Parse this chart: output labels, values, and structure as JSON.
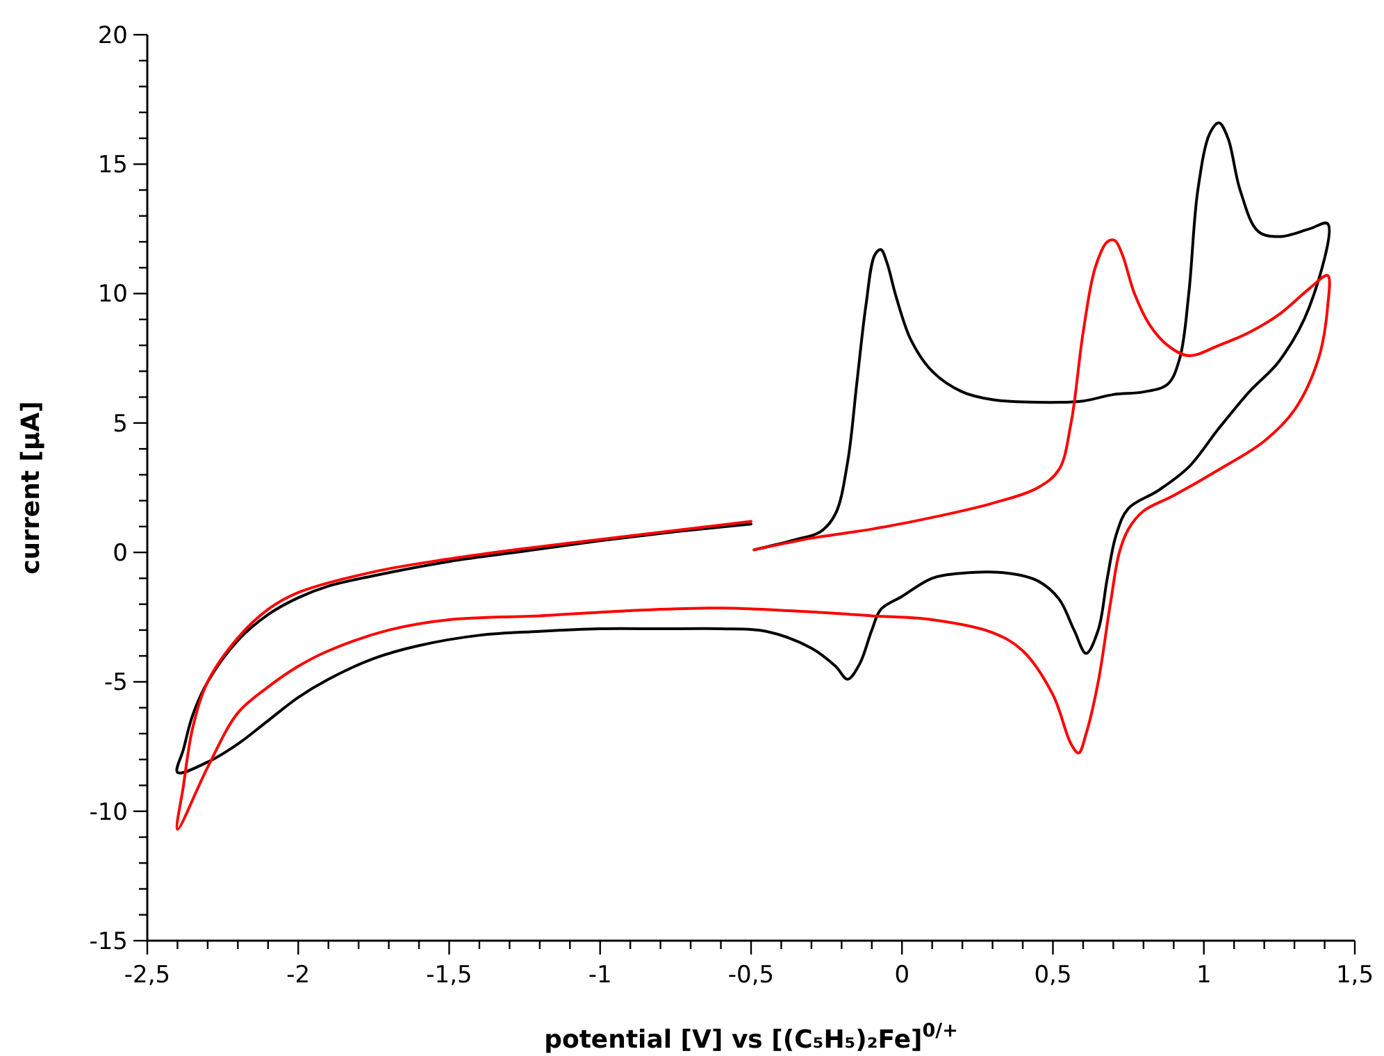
{
  "chart_data": {
    "type": "line",
    "xlabel": "potential [V] vs [(C₅H₅)₂Fe]$^{0/+}$",
    "ylabel": "current [µA]",
    "xlim": [
      -2.5,
      1.5
    ],
    "ylim": [
      -15,
      20
    ],
    "grid": false,
    "marker": "none",
    "line_style": "solid",
    "xticks": [
      {
        "value": -2.5,
        "label": "-2,5"
      },
      {
        "value": -2,
        "label": "-2"
      },
      {
        "value": -1.5,
        "label": "-1,5"
      },
      {
        "value": -1,
        "label": "-1"
      },
      {
        "value": -0.5,
        "label": "-0,5"
      },
      {
        "value": 0,
        "label": "0"
      },
      {
        "value": 0.5,
        "label": "0,5"
      },
      {
        "value": 1,
        "label": "1"
      },
      {
        "value": 1.5,
        "label": "1,5"
      },
      {
        "value": -2.4,
        "label": null
      },
      {
        "value": -2.3,
        "label": null
      },
      {
        "value": -2.2,
        "label": null
      },
      {
        "value": -2.1,
        "label": null
      },
      {
        "value": -1.9,
        "label": null
      },
      {
        "value": -1.8,
        "label": null
      },
      {
        "value": -1.7,
        "label": null
      },
      {
        "value": -1.6,
        "label": null
      },
      {
        "value": -1.4,
        "label": null
      },
      {
        "value": -1.3,
        "label": null
      },
      {
        "value": -1.2,
        "label": null
      },
      {
        "value": -1.1,
        "label": null
      },
      {
        "value": -0.9,
        "label": null
      },
      {
        "value": -0.8,
        "label": null
      },
      {
        "value": -0.7,
        "label": null
      },
      {
        "value": -0.6,
        "label": null
      },
      {
        "value": -0.4,
        "label": null
      },
      {
        "value": -0.3,
        "label": null
      },
      {
        "value": -0.2,
        "label": null
      },
      {
        "value": -0.1,
        "label": null
      },
      {
        "value": 0.1,
        "label": null
      },
      {
        "value": 0.2,
        "label": null
      },
      {
        "value": 0.3,
        "label": null
      },
      {
        "value": 0.4,
        "label": null
      },
      {
        "value": 0.6,
        "label": null
      },
      {
        "value": 0.7,
        "label": null
      },
      {
        "value": 0.8,
        "label": null
      },
      {
        "value": 0.9,
        "label": null
      },
      {
        "value": 1.1,
        "label": null
      },
      {
        "value": 1.2,
        "label": null
      },
      {
        "value": 1.3,
        "label": null
      },
      {
        "value": 1.4,
        "label": null
      }
    ],
    "yticks": [
      -15,
      -10,
      -5,
      0,
      5,
      10,
      15,
      20,
      {
        "value": -14,
        "label": null
      },
      {
        "value": -13,
        "label": null
      },
      {
        "value": -12,
        "label": null
      },
      {
        "value": -11,
        "label": null
      },
      {
        "value": -9,
        "label": null
      },
      {
        "value": -8,
        "label": null
      },
      {
        "value": -7,
        "label": null
      },
      {
        "value": -6,
        "label": null
      },
      {
        "value": -4,
        "label": null
      },
      {
        "value": -3,
        "label": null
      },
      {
        "value": -2,
        "label": null
      },
      {
        "value": -1,
        "label": null
      },
      {
        "value": 1,
        "label": null
      },
      {
        "value": 2,
        "label": null
      },
      {
        "value": 3,
        "label": null
      },
      {
        "value": 4,
        "label": null
      },
      {
        "value": 6,
        "label": null
      },
      {
        "value": 7,
        "label": null
      },
      {
        "value": 8,
        "label": null
      },
      {
        "value": 9,
        "label": null
      },
      {
        "value": 11,
        "label": null
      },
      {
        "value": 12,
        "label": null
      },
      {
        "value": 13,
        "label": null
      },
      {
        "value": 14,
        "label": null
      },
      {
        "value": 16,
        "label": null
      },
      {
        "value": 17,
        "label": null
      },
      {
        "value": 18,
        "label": null
      },
      {
        "value": 19,
        "label": null
      }
    ],
    "series": [
      {
        "color": "#000000",
        "x": [
          -0.5,
          -0.75,
          -1.0,
          -1.25,
          -1.5,
          -1.75,
          -1.9,
          -2.0,
          -2.1,
          -2.2,
          -2.3,
          -2.35,
          -2.38,
          -2.4,
          -2.3,
          -2.2,
          -2.1,
          -2.0,
          -1.9,
          -1.75,
          -1.6,
          -1.4,
          -1.2,
          -1.0,
          -0.8,
          -0.6,
          -0.45,
          -0.3,
          -0.22,
          -0.18,
          -0.14,
          -0.1,
          -0.07,
          0,
          0.1,
          0.2,
          0.35,
          0.45,
          0.52,
          0.57,
          0.61,
          0.65,
          0.68,
          0.71,
          0.75,
          0.85,
          0.95,
          1.05,
          1.15,
          1.25,
          1.35,
          1.41,
          1.35,
          1.25,
          1.18,
          1.12,
          1.08,
          1.05,
          1.02,
          0.98,
          0.95,
          0.92,
          0.88,
          0.8,
          0.7,
          0.6,
          0.45,
          0.3,
          0.2,
          0.1,
          0.03,
          -0.02,
          -0.05,
          -0.07,
          -0.09,
          -0.12,
          -0.15,
          -0.18,
          -0.22,
          -0.27,
          -0.35,
          -0.49
        ],
        "values": [
          1.1,
          0.8,
          0.45,
          0.05,
          -0.35,
          -0.9,
          -1.3,
          -1.75,
          -2.4,
          -3.4,
          -5.0,
          -6.3,
          -7.6,
          -8.5,
          -8.1,
          -7.4,
          -6.5,
          -5.6,
          -4.9,
          -4.1,
          -3.6,
          -3.2,
          -3.05,
          -2.95,
          -2.95,
          -2.95,
          -3.05,
          -3.7,
          -4.4,
          -4.9,
          -4.3,
          -3.0,
          -2.2,
          -1.7,
          -1.0,
          -0.8,
          -0.8,
          -1.1,
          -1.8,
          -3.0,
          -3.9,
          -3.0,
          -1.0,
          0.7,
          1.7,
          2.4,
          3.3,
          4.8,
          6.2,
          7.4,
          9.5,
          12.7,
          12.5,
          12.2,
          12.4,
          14.0,
          16.0,
          16.6,
          16.2,
          14.0,
          10.0,
          7.5,
          6.5,
          6.2,
          6.1,
          5.85,
          5.8,
          5.9,
          6.2,
          7.0,
          8.2,
          9.9,
          11.2,
          11.7,
          11.5,
          9.5,
          6.5,
          3.5,
          1.5,
          0.8,
          0.5,
          0.1
        ]
      },
      {
        "color": "#ff0000",
        "x": [
          -0.49,
          -0.3,
          -0.1,
          0.1,
          0.3,
          0.45,
          0.52,
          0.56,
          0.6,
          0.64,
          0.68,
          0.705,
          0.73,
          0.77,
          0.82,
          0.88,
          0.95,
          1.05,
          1.15,
          1.25,
          1.35,
          1.41,
          1.41,
          1.38,
          1.3,
          1.2,
          1.05,
          0.9,
          0.8,
          0.75,
          0.72,
          0.69,
          0.65,
          0.61,
          0.585,
          0.56,
          0.5,
          0.4,
          0.3,
          0.1,
          -0.1,
          -0.3,
          -0.6,
          -0.9,
          -1.2,
          -1.5,
          -1.7,
          -1.9,
          -2.0,
          -2.1,
          -2.2,
          -2.3,
          -2.4,
          -2.38,
          -2.35,
          -2.3,
          -2.2,
          -2.1,
          -2.0,
          -1.75,
          -1.5,
          -1.25,
          -1.0,
          -0.75,
          -0.5
        ],
        "values": [
          0.1,
          0.55,
          0.9,
          1.35,
          1.9,
          2.5,
          3.2,
          5.0,
          8.5,
          11.0,
          12.0,
          12.05,
          11.5,
          10.0,
          8.8,
          8.0,
          7.6,
          8.0,
          8.5,
          9.2,
          10.2,
          10.7,
          9.5,
          7.5,
          5.5,
          4.3,
          3.2,
          2.2,
          1.6,
          0.9,
          0,
          -2.0,
          -5.0,
          -7.0,
          -7.75,
          -7.4,
          -5.5,
          -3.8,
          -3.1,
          -2.6,
          -2.45,
          -2.3,
          -2.15,
          -2.25,
          -2.45,
          -2.6,
          -3.0,
          -3.8,
          -4.4,
          -5.2,
          -6.2,
          -8.3,
          -10.7,
          -9.0,
          -6.8,
          -5.0,
          -3.3,
          -2.2,
          -1.55,
          -0.75,
          -0.25,
          0.15,
          0.5,
          0.85,
          1.2
        ]
      }
    ]
  }
}
